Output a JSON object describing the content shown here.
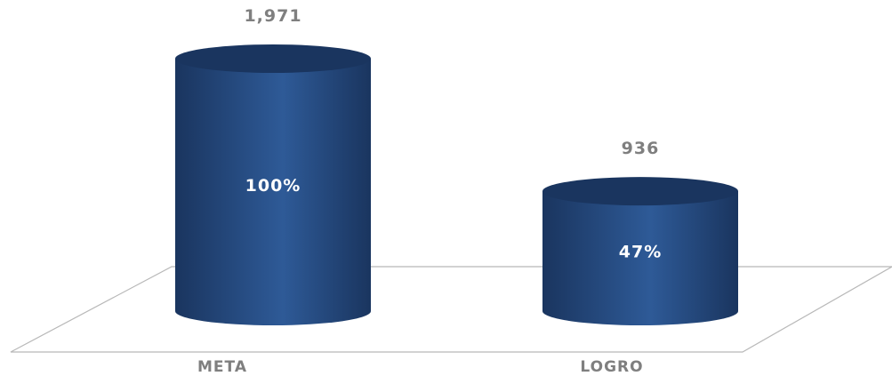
{
  "chart_data": {
    "type": "bar",
    "style": "3d-cylinder",
    "categories": [
      "META",
      "LOGRO"
    ],
    "values": [
      1971,
      936
    ],
    "value_labels": [
      "1,971",
      "936"
    ],
    "percent_labels": [
      "100%",
      "47%"
    ],
    "ylim": [
      0,
      1971
    ],
    "grid": false,
    "legend": "none",
    "colors": {
      "bar": "#1f3f73",
      "bar_highlight": "#2e5a97",
      "bar_top": "#1a355f",
      "floor_line": "#b8b8b8",
      "label": "#7f7f7f",
      "inner_label": "#ffffff"
    }
  }
}
